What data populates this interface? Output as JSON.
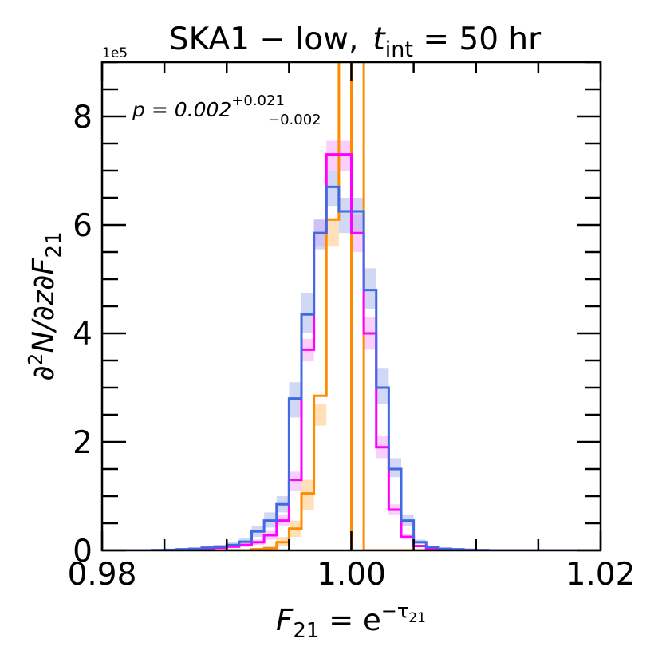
{
  "chart_data": {
    "type": "histogram-step",
    "title": {
      "prefix": "SKA1 − low,",
      "var": "t",
      "var_sub": "int",
      "rest": " = 50 hr"
    },
    "offset_label": "1e5",
    "annotation": {
      "prefix": "p = 0.002",
      "sup": "+0.021",
      "sub": "−0.002"
    },
    "ylabel": {
      "lead": "∂",
      "pow": "2",
      "body": "N/∂z∂F",
      "sub": "21"
    },
    "xlabel": {
      "lead": "F",
      "sub": "21",
      "mid": " = e",
      "sup": "−τ",
      "supsub": "21"
    },
    "xlim": [
      0.98,
      1.02
    ],
    "ylim": [
      0,
      9
    ],
    "x_ticks": [
      0.98,
      1.0,
      1.02
    ],
    "x_tick_labels": [
      "0.98",
      "1.00",
      "1.02"
    ],
    "y_ticks": [
      0,
      2,
      4,
      6,
      8
    ],
    "y_tick_labels": [
      "0",
      "2",
      "4",
      "6",
      "8"
    ],
    "bin_edges": [
      0.98,
      0.981,
      0.982,
      0.983,
      0.984,
      0.985,
      0.986,
      0.987,
      0.988,
      0.989,
      0.99,
      0.991,
      0.992,
      0.993,
      0.994,
      0.995,
      0.996,
      0.997,
      0.998,
      0.999,
      1.0,
      1.001,
      1.002,
      1.003,
      1.004,
      1.005,
      1.006,
      1.007,
      1.008,
      1.009,
      1.01,
      1.011,
      1.012,
      1.013,
      1.014,
      1.015,
      1.016,
      1.017,
      1.018,
      1.019,
      1.02
    ],
    "series": [
      {
        "name": "orange",
        "color": "#ff8c00",
        "band_color": "#ffc77f",
        "values": [
          0,
          0,
          0,
          0,
          0,
          0,
          0,
          0,
          0,
          0,
          0,
          0,
          0.02,
          0.04,
          0.15,
          0.4,
          1.05,
          2.85,
          6.1,
          9.5,
          9.5,
          0,
          0,
          0,
          0,
          0,
          0,
          0,
          0,
          0,
          0,
          0,
          0,
          0,
          0,
          0,
          0,
          0,
          0,
          0
        ],
        "lower": [
          0,
          0,
          0,
          0,
          0,
          0,
          0,
          0,
          0,
          0,
          0,
          0,
          0.01,
          0.02,
          0.08,
          0.25,
          0.75,
          2.3,
          5.6,
          9.5,
          9.5,
          0,
          0,
          0,
          0,
          0,
          0,
          0,
          0,
          0,
          0,
          0,
          0,
          0,
          0,
          0,
          0,
          0,
          0,
          0
        ],
        "upper": [
          0,
          0,
          0,
          0,
          0,
          0,
          0,
          0,
          0,
          0,
          0,
          0,
          0.04,
          0.07,
          0.25,
          0.55,
          1.3,
          2.7,
          6.1,
          9.5,
          9.5,
          0,
          0,
          0,
          0,
          0,
          0,
          0,
          0,
          0,
          0,
          0,
          0,
          0,
          0,
          0,
          0,
          0,
          0,
          0
        ]
      },
      {
        "name": "magenta",
        "color": "#ff00ff",
        "band_color": "#f7a8f7",
        "values": [
          0,
          0,
          0,
          0,
          0,
          0,
          0.01,
          0.02,
          0.03,
          0.05,
          0.07,
          0.1,
          0.15,
          0.28,
          0.55,
          1.3,
          3.7,
          5.85,
          7.3,
          7.3,
          5.85,
          4.0,
          1.9,
          0.75,
          0.25,
          0.08,
          0.03,
          0.02,
          0.01,
          0.01,
          0,
          0,
          0,
          0,
          0,
          0,
          0,
          0,
          0,
          0
        ],
        "lower": [
          0,
          0,
          0,
          0,
          0,
          0,
          0.005,
          0.01,
          0.02,
          0.03,
          0.04,
          0.06,
          0.1,
          0.2,
          0.45,
          1.1,
          3.5,
          5.6,
          7.0,
          7.0,
          5.5,
          3.7,
          1.7,
          0.65,
          0.2,
          0.06,
          0.02,
          0.01,
          0.005,
          0.005,
          0,
          0,
          0,
          0,
          0,
          0,
          0,
          0,
          0,
          0
        ],
        "upper": [
          0,
          0,
          0,
          0,
          0,
          0,
          0.02,
          0.03,
          0.05,
          0.07,
          0.1,
          0.14,
          0.2,
          0.36,
          0.65,
          1.45,
          3.9,
          6.1,
          7.55,
          7.55,
          6.2,
          4.3,
          2.1,
          0.85,
          0.3,
          0.1,
          0.04,
          0.03,
          0.02,
          0.015,
          0,
          0,
          0,
          0,
          0,
          0,
          0,
          0,
          0,
          0
        ]
      },
      {
        "name": "blue",
        "color": "#4169e1",
        "band_color": "#a9b8ec",
        "values": [
          0,
          0,
          0,
          0,
          0.005,
          0.01,
          0.02,
          0.03,
          0.05,
          0.07,
          0.1,
          0.16,
          0.35,
          0.55,
          0.85,
          2.8,
          4.35,
          5.85,
          6.7,
          6.25,
          6.25,
          4.8,
          3.0,
          1.5,
          0.55,
          0.15,
          0.06,
          0.03,
          0.02,
          0.01,
          0.005,
          0,
          0,
          0,
          0,
          0,
          0,
          0,
          0,
          0
        ],
        "lower": [
          0,
          0,
          0,
          0,
          0,
          0.005,
          0.01,
          0.02,
          0.03,
          0.05,
          0.07,
          0.12,
          0.25,
          0.42,
          0.7,
          2.45,
          4.0,
          5.55,
          6.35,
          5.85,
          5.85,
          4.45,
          2.7,
          1.35,
          0.45,
          0.12,
          0.04,
          0.02,
          0.01,
          0.005,
          0,
          0,
          0,
          0,
          0,
          0,
          0,
          0,
          0,
          0
        ],
        "upper": [
          0,
          0,
          0,
          0,
          0.01,
          0.02,
          0.03,
          0.05,
          0.07,
          0.1,
          0.15,
          0.22,
          0.45,
          0.7,
          1.0,
          3.1,
          4.75,
          6.1,
          7.0,
          6.5,
          6.5,
          5.2,
          3.35,
          1.7,
          0.65,
          0.2,
          0.08,
          0.04,
          0.03,
          0.02,
          0.01,
          0,
          0,
          0,
          0,
          0,
          0,
          0,
          0,
          0
        ]
      }
    ],
    "vertical_line": {
      "x": 1.0,
      "color": "#ff8c00"
    }
  }
}
